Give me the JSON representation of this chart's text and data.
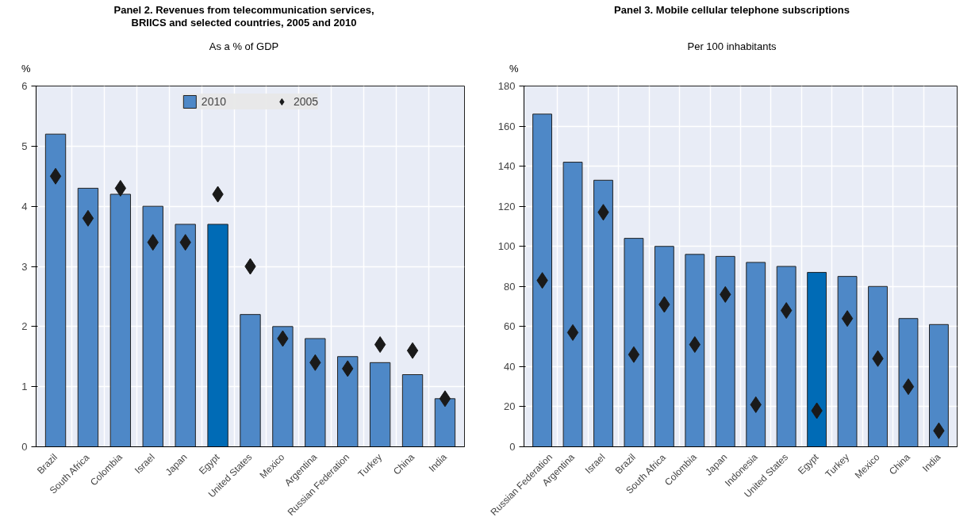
{
  "chart_data": [
    {
      "type": "bar",
      "title": "Panel 2. Revenues from telecommunication services,\nBRIICS and selected countries, 2005 and 2010",
      "subtitle": "As a % of GDP",
      "ylabel": "%",
      "categories": [
        "Brazil",
        "South Africa",
        "Colombia",
        "Israel",
        "Japan",
        "Egypt",
        "United States",
        "Mexico",
        "Argentina",
        "Russian Federation",
        "Turkey",
        "China",
        "India"
      ],
      "series": [
        {
          "name": "2010",
          "type": "bar",
          "color": "#4e88c7",
          "colors": [
            null,
            null,
            null,
            null,
            null,
            "#006bb6",
            null,
            null,
            null,
            null,
            null,
            null,
            null
          ],
          "values": [
            5.2,
            4.3,
            4.2,
            4.0,
            3.7,
            3.7,
            2.2,
            2.0,
            1.8,
            1.5,
            1.4,
            1.2,
            0.8
          ]
        },
        {
          "name": "2005",
          "type": "scatter",
          "color": "#1a1a1a",
          "values": [
            4.5,
            3.8,
            4.3,
            3.4,
            3.4,
            4.2,
            3.0,
            1.8,
            1.4,
            1.3,
            1.7,
            1.6,
            0.8
          ]
        }
      ],
      "ylim": [
        0,
        6
      ],
      "yticks": [
        0,
        1,
        2,
        3,
        4,
        5,
        6
      ],
      "grid": true,
      "legend": "top",
      "marker": "diamond"
    },
    {
      "type": "bar",
      "title": "Panel 3. Mobile cellular telephone subscriptions",
      "subtitle": "Per 100 inhabitants",
      "ylabel": "%",
      "categories": [
        "Russian Federation",
        "Argentina",
        "Israel",
        "Brazil",
        "South Africa",
        "Colombia",
        "Japan",
        "Indonesia",
        "United States",
        "Egypt",
        "Turkey",
        "Mexico",
        "China",
        "India"
      ],
      "series": [
        {
          "name": "2010",
          "type": "bar",
          "color": "#4e88c7",
          "colors": [
            null,
            null,
            null,
            null,
            null,
            null,
            null,
            null,
            null,
            "#006bb6",
            null,
            null,
            null,
            null
          ],
          "values": [
            166,
            142,
            133,
            104,
            100,
            96,
            95,
            92,
            90,
            87,
            85,
            80,
            64,
            61
          ]
        },
        {
          "name": "2005",
          "type": "scatter",
          "color": "#1a1a1a",
          "values": [
            83,
            57,
            117,
            46,
            71,
            51,
            76,
            21,
            68,
            18,
            64,
            44,
            30,
            8
          ]
        }
      ],
      "ylim": [
        0,
        180
      ],
      "yticks": [
        0,
        20,
        40,
        60,
        80,
        100,
        120,
        140,
        160,
        180
      ],
      "grid": true,
      "marker": "diamond"
    }
  ]
}
